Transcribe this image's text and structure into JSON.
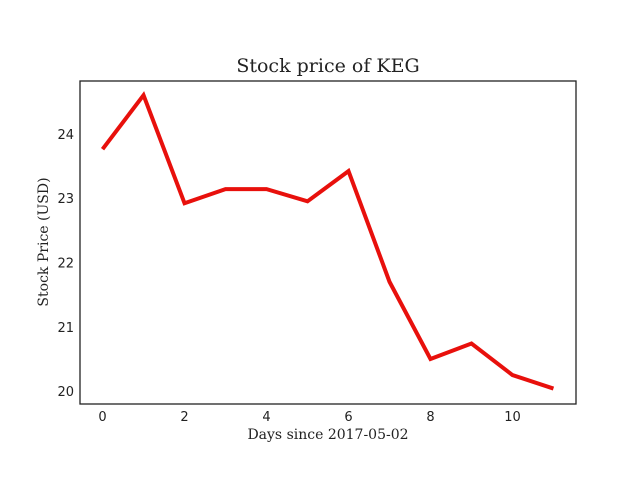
{
  "chart_data": {
    "type": "line",
    "title": "Stock price of KEG",
    "xlabel": "Days since 2017-05-02",
    "ylabel": "Stock Price (USD)",
    "x": [
      0,
      1,
      2,
      3,
      4,
      5,
      6,
      7,
      8,
      9,
      10,
      11
    ],
    "series": [
      {
        "values": [
          23.76,
          24.6,
          22.92,
          23.14,
          23.14,
          22.95,
          23.42,
          21.7,
          20.5,
          20.74,
          20.25,
          20.04
        ],
        "color": "#e8100c"
      }
    ],
    "xlim": [
      -0.55,
      11.55
    ],
    "ylim": [
      19.8,
      24.82
    ],
    "xticks": [
      0,
      2,
      4,
      6,
      8,
      10
    ],
    "yticks": [
      20,
      21,
      22,
      23,
      24
    ],
    "grid": false,
    "legend": "none"
  }
}
